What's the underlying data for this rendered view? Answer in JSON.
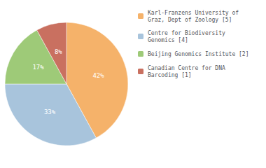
{
  "chart_data": {
    "type": "pie",
    "categories": [
      "Karl-Franzens University of\nGraz, Dept of Zoology [5]",
      "Centre for Biodiversity\nGenomics [4]",
      "Beijing Genomics Institute [2]",
      "Canadian Centre for DNA\nBarcoding [1]"
    ],
    "values": [
      42,
      33,
      17,
      8
    ],
    "value_labels": [
      "42%",
      "33%",
      "17%",
      "8%"
    ],
    "colors": [
      "#f5b26a",
      "#a8c4dc",
      "#9eca78",
      "#c97060"
    ],
    "data_labels": true,
    "legend": "upper right"
  }
}
